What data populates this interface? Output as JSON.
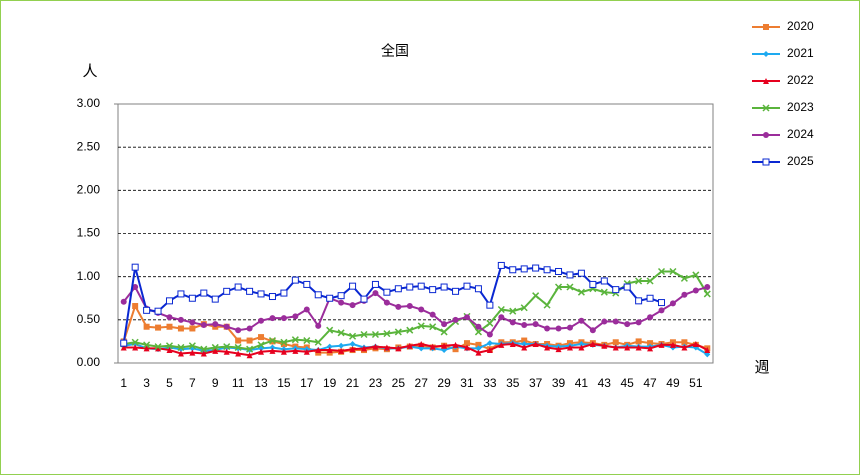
{
  "chart_data": {
    "type": "line",
    "title": "全国",
    "y_label": "人",
    "x_label": "週",
    "categories": [
      1,
      null,
      3,
      null,
      5,
      null,
      7,
      null,
      9,
      null,
      11,
      null,
      13,
      null,
      15,
      null,
      17,
      null,
      19,
      null,
      21,
      null,
      23,
      null,
      25,
      null,
      27,
      null,
      29,
      null,
      31,
      null,
      33,
      null,
      35,
      null,
      37,
      null,
      39,
      null,
      41,
      null,
      43,
      null,
      45,
      null,
      47,
      null,
      49,
      null,
      51,
      null
    ],
    "ylim": [
      0,
      3
    ],
    "yticks": [
      {
        "value": 0,
        "label": "0.00"
      },
      {
        "value": 0.5,
        "label": "0.50"
      },
      {
        "value": 1,
        "label": "1.00"
      },
      {
        "value": 1.5,
        "label": "1.50"
      },
      {
        "value": 2,
        "label": "2.00"
      },
      {
        "value": 2.5,
        "label": "2.50"
      },
      {
        "value": 3,
        "label": "3.00"
      }
    ],
    "grid": true,
    "legend": "right",
    "series": [
      {
        "name": "2020",
        "color": "#ED7D31",
        "marker": "square",
        "values": [
          0.25,
          0.66,
          0.42,
          0.41,
          0.42,
          0.4,
          0.4,
          0.45,
          0.42,
          0.42,
          0.26,
          0.26,
          0.3,
          0.25,
          0.22,
          0.19,
          0.18,
          0.12,
          0.12,
          0.13,
          0.15,
          0.15,
          0.17,
          0.16,
          0.18,
          0.19,
          0.2,
          0.18,
          0.2,
          0.16,
          0.23,
          0.21,
          0.16,
          0.24,
          0.24,
          0.26,
          0.22,
          0.22,
          0.2,
          0.23,
          0.24,
          0.23,
          0.21,
          0.24,
          0.21,
          0.25,
          0.23,
          0.22,
          0.24,
          0.24,
          0.21,
          0.17
        ]
      },
      {
        "name": "2021",
        "color": "#1EAAF0",
        "marker": "diamond",
        "values": [
          0.2,
          0.22,
          0.17,
          0.16,
          0.18,
          0.16,
          0.17,
          0.14,
          0.15,
          0.18,
          0.17,
          0.15,
          0.17,
          0.18,
          0.16,
          0.17,
          0.16,
          0.15,
          0.19,
          0.2,
          0.22,
          0.18,
          0.19,
          0.17,
          0.17,
          0.19,
          0.17,
          0.17,
          0.15,
          0.19,
          0.17,
          0.17,
          0.23,
          0.22,
          0.23,
          0.22,
          0.22,
          0.2,
          0.19,
          0.2,
          0.22,
          0.21,
          0.2,
          0.18,
          0.2,
          0.19,
          0.19,
          0.21,
          0.18,
          0.19,
          0.18,
          0.1
        ]
      },
      {
        "name": "2022",
        "color": "#E6001E",
        "marker": "triangle",
        "values": [
          0.18,
          0.18,
          0.17,
          0.17,
          0.15,
          0.11,
          0.12,
          0.11,
          0.14,
          0.13,
          0.11,
          0.09,
          0.13,
          0.14,
          0.13,
          0.14,
          0.13,
          0.15,
          0.15,
          0.14,
          0.16,
          0.17,
          0.19,
          0.18,
          0.17,
          0.2,
          0.22,
          0.19,
          0.2,
          0.21,
          0.18,
          0.12,
          0.15,
          0.21,
          0.22,
          0.18,
          0.22,
          0.18,
          0.16,
          0.18,
          0.18,
          0.22,
          0.2,
          0.18,
          0.18,
          0.18,
          0.17,
          0.21,
          0.21,
          0.18,
          0.22,
          0.15
        ]
      },
      {
        "name": "2023",
        "color": "#5AB43C",
        "marker": "x",
        "values": [
          0.22,
          0.24,
          0.21,
          0.19,
          0.2,
          0.18,
          0.2,
          0.16,
          0.18,
          0.19,
          0.18,
          0.16,
          0.21,
          0.26,
          0.24,
          0.27,
          0.26,
          0.24,
          0.38,
          0.35,
          0.31,
          0.33,
          0.33,
          0.34,
          0.36,
          0.38,
          0.43,
          0.42,
          0.36,
          0.48,
          0.54,
          0.36,
          0.46,
          0.62,
          0.6,
          0.64,
          0.78,
          0.67,
          0.88,
          0.88,
          0.82,
          0.86,
          0.82,
          0.81,
          0.92,
          0.95,
          0.95,
          1.06,
          1.06,
          0.98,
          1.02,
          0.8
        ]
      },
      {
        "name": "2024",
        "color": "#9B2D9B",
        "marker": "circle",
        "values": [
          0.71,
          0.88,
          0.63,
          0.58,
          0.53,
          0.5,
          0.47,
          0.44,
          0.45,
          0.42,
          0.38,
          0.4,
          0.49,
          0.52,
          0.52,
          0.54,
          0.62,
          0.43,
          0.75,
          0.7,
          0.67,
          0.72,
          0.81,
          0.7,
          0.65,
          0.66,
          0.62,
          0.56,
          0.45,
          0.5,
          0.53,
          0.42,
          0.33,
          0.53,
          0.47,
          0.44,
          0.45,
          0.4,
          0.4,
          0.41,
          0.49,
          0.38,
          0.48,
          0.48,
          0.45,
          0.47,
          0.53,
          0.61,
          0.69,
          0.79,
          0.84,
          0.88
        ]
      },
      {
        "name": "2025",
        "color": "#0A28D2",
        "marker": "open-square",
        "values": [
          0.23,
          1.11,
          0.61,
          0.6,
          0.72,
          0.8,
          0.75,
          0.81,
          0.74,
          0.83,
          0.88,
          0.83,
          0.8,
          0.77,
          0.81,
          0.96,
          0.91,
          0.79,
          0.75,
          0.78,
          0.89,
          0.74,
          0.91,
          0.82,
          0.86,
          0.88,
          0.89,
          0.85,
          0.88,
          0.83,
          0.89,
          0.86,
          0.67,
          1.13,
          1.08,
          1.09,
          1.1,
          1.08,
          1.06,
          1.02,
          1.04,
          0.91,
          0.95,
          0.85,
          0.88,
          0.72,
          0.75,
          0.7,
          null,
          null,
          null,
          null
        ]
      }
    ]
  }
}
